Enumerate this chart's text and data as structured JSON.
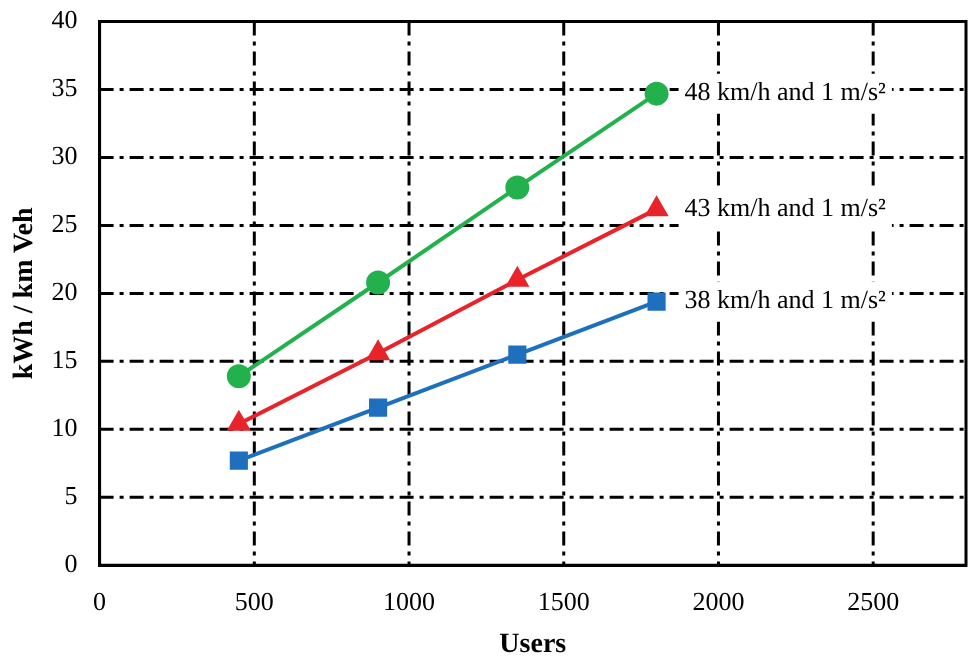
{
  "chart_data": {
    "type": "line",
    "xlabel": "Users",
    "ylabel": "kWh / km Veh",
    "x": [
      450,
      900,
      1350,
      1800
    ],
    "series": [
      {
        "name": "48 km/h and 1 m/s²",
        "color": "#22b14c",
        "marker": "circle",
        "values": [
          13.9,
          20.8,
          27.8,
          34.7
        ]
      },
      {
        "name": "43 km/h and 1 m/s²",
        "color": "#e8232a",
        "marker": "triangle",
        "values": [
          10.4,
          15.6,
          21.0,
          26.2
        ]
      },
      {
        "name": "38 km/h and 1 m/s²",
        "color": "#1f6fbf",
        "marker": "square",
        "values": [
          7.7,
          11.6,
          15.5,
          19.4
        ]
      }
    ],
    "xlim": [
      0,
      2800
    ],
    "xticks": [
      0,
      500,
      1000,
      1500,
      2000,
      2500
    ],
    "ylim": [
      0,
      40
    ],
    "yticks": [
      0,
      5,
      10,
      15,
      20,
      25,
      30,
      35,
      40
    ],
    "grid": true,
    "legend": false,
    "line_style": "solid"
  }
}
